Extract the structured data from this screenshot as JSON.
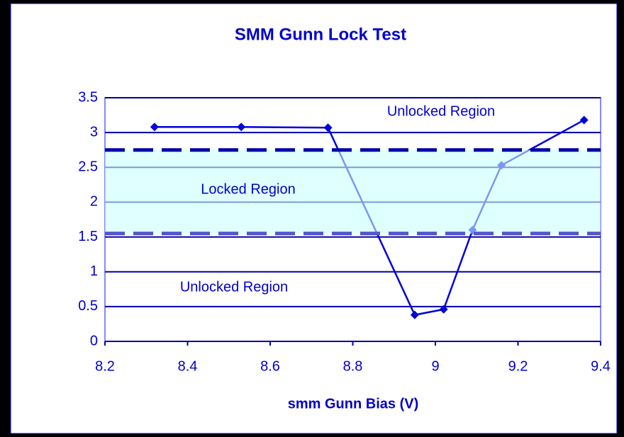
{
  "chart_data": {
    "type": "line",
    "title": "SMM Gunn Lock Test",
    "x_label": "smm Gunn Bias (V)",
    "x": [
      8.32,
      8.53,
      8.74,
      8.95,
      9.02,
      9.09,
      9.16,
      9.36
    ],
    "values": [
      3.08,
      3.08,
      3.07,
      0.38,
      0.46,
      1.6,
      2.53,
      3.18
    ],
    "color": "#0000dd",
    "xlim": [
      8.2,
      9.4
    ],
    "xticks": [
      8.2,
      8.4,
      8.6,
      8.8,
      9,
      9.2,
      9.4
    ],
    "ylim": [
      0,
      3.5
    ],
    "yticks": [
      0,
      0.5,
      1,
      1.5,
      2,
      2.5,
      3,
      3.5
    ],
    "grid": true,
    "band": {
      "ylim": [
        1.55,
        2.75
      ],
      "color": "#ccffff"
    },
    "annotations": [
      "Unlocked Region",
      "Locked Region",
      "Unlocked Region"
    ]
  }
}
